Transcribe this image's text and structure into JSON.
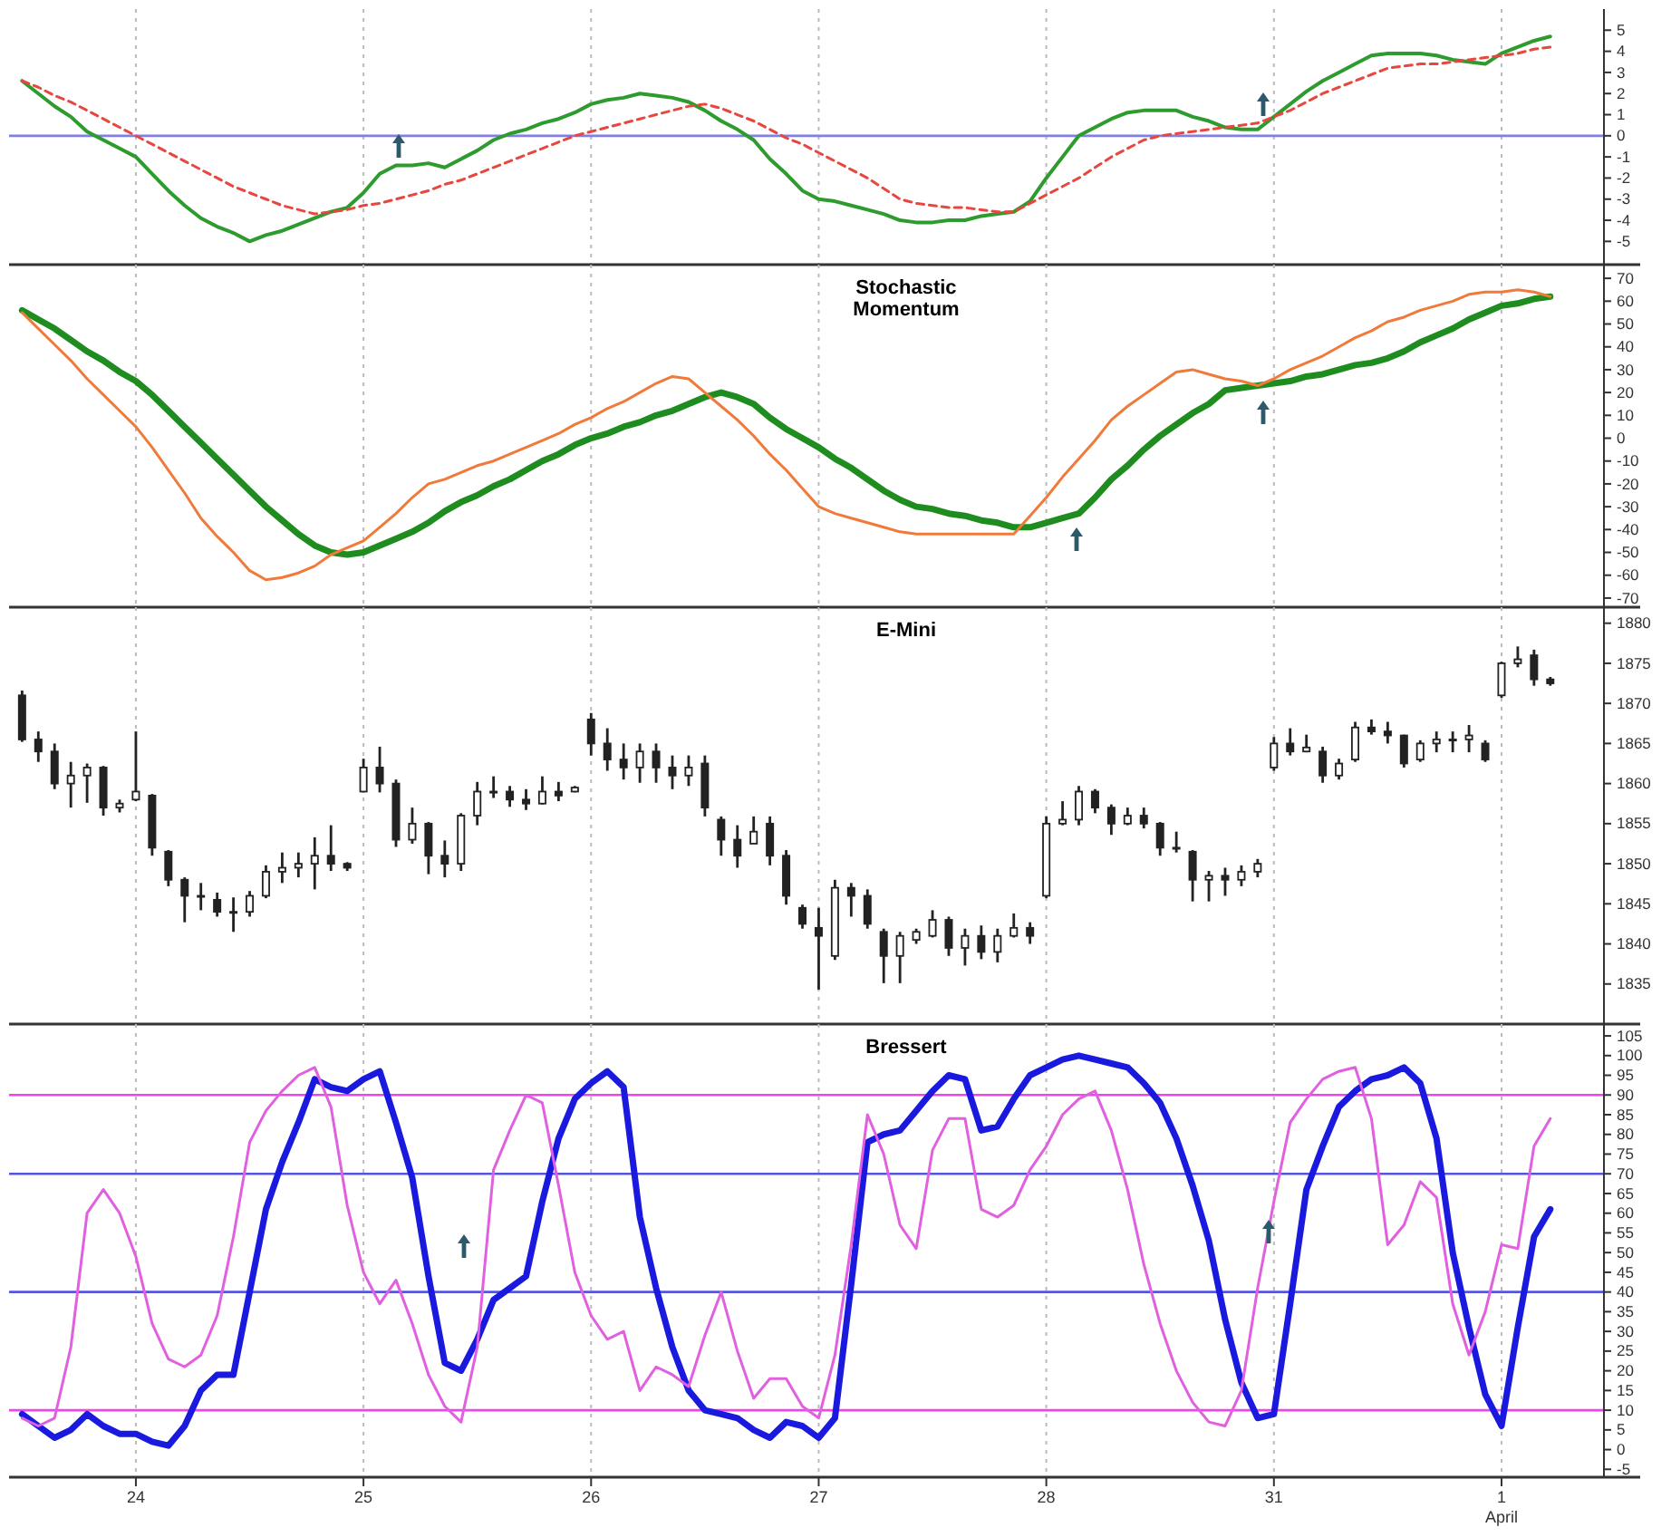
{
  "chart_data": [
    {
      "type": "line",
      "categories": [
        null,
        null,
        null,
        null,
        null,
        null,
        null,
        "24",
        null,
        null,
        null,
        null,
        null,
        null,
        null,
        null,
        null,
        null,
        null,
        null,
        null,
        "25",
        null,
        null,
        null,
        null,
        null,
        null,
        null,
        null,
        null,
        null,
        null,
        null,
        null,
        "26",
        null,
        null,
        null,
        null,
        null,
        null,
        null,
        null,
        null,
        null,
        null,
        null,
        null,
        "27",
        null,
        null,
        null,
        null,
        null,
        null,
        null,
        null,
        null,
        null,
        null,
        null,
        null,
        "28",
        null,
        null,
        null,
        null,
        null,
        null,
        null,
        null,
        null,
        null,
        null,
        null,
        null,
        "31",
        null,
        null,
        null,
        null,
        null,
        null,
        null,
        null,
        null,
        null,
        null,
        null,
        null,
        "1 April",
        null,
        null,
        null
      ],
      "ylim": [
        -6.1,
        6.0
      ],
      "yticks": [
        -5,
        -4,
        -3,
        -2,
        -1,
        0,
        1,
        2,
        3,
        4,
        5
      ],
      "grid": "x",
      "tick_labels": "y",
      "ref_lines": [
        {
          "axis": "y",
          "value": 0,
          "color": "#7f7fe6"
        }
      ],
      "series": [
        {
          "color": "#2e9b2e",
          "values": [
            2.6,
            2.0,
            1.4,
            0.9,
            0.2,
            -0.2,
            -0.6,
            -1.0,
            -1.8,
            -2.6,
            -3.3,
            -3.9,
            -4.3,
            -4.6,
            -5.0,
            -4.7,
            -4.5,
            -4.2,
            -3.9,
            -3.6,
            -3.4,
            -2.7,
            -1.8,
            -1.4,
            -1.4,
            -1.3,
            -1.5,
            -1.1,
            -0.7,
            -0.2,
            0.1,
            0.3,
            0.6,
            0.8,
            1.1,
            1.5,
            1.7,
            1.8,
            2.0,
            1.9,
            1.8,
            1.6,
            1.2,
            0.7,
            0.3,
            -0.2,
            -1.1,
            -1.8,
            -2.6,
            -3.0,
            -3.1,
            -3.3,
            -3.5,
            -3.7,
            -4.0,
            -4.1,
            -4.1,
            -4.0,
            -4.0,
            -3.8,
            -3.7,
            -3.6,
            -3.1,
            -2.0,
            -1.0,
            0,
            0.4,
            0.8,
            1.1,
            1.2,
            1.2,
            1.2,
            0.9,
            0.7,
            0.4,
            0.3,
            0.3,
            0.9,
            1.5,
            2.1,
            2.6,
            3.0,
            3.4,
            3.8,
            3.9,
            3.9,
            3.9,
            3.8,
            3.6,
            3.5,
            3.4,
            3.9,
            4.2,
            4.5,
            4.7
          ]
        },
        {
          "color": "#e8473f",
          "line_style": "dashed",
          "values": [
            2.6,
            2.3,
            1.9,
            1.6,
            1.2,
            0.8,
            0.4,
            0,
            -0.4,
            -0.8,
            -1.2,
            -1.6,
            -2.0,
            -2.4,
            -2.7,
            -3.0,
            -3.3,
            -3.5,
            -3.7,
            -3.6,
            -3.5,
            -3.3,
            -3.2,
            -3.0,
            -2.8,
            -2.6,
            -2.3,
            -2.1,
            -1.8,
            -1.5,
            -1.2,
            -0.9,
            -0.6,
            -0.3,
            0,
            0.2,
            0.4,
            0.6,
            0.8,
            1.0,
            1.2,
            1.4,
            1.5,
            1.3,
            1.0,
            0.7,
            0.3,
            -0.1,
            -0.4,
            -0.8,
            -1.2,
            -1.6,
            -2.0,
            -2.5,
            -3.0,
            -3.2,
            -3.3,
            -3.4,
            -3.4,
            -3.5,
            -3.6,
            -3.6,
            -3.2,
            -2.8,
            -2.4,
            -2.0,
            -1.5,
            -1.0,
            -0.6,
            -0.2,
            0,
            0.1,
            0.2,
            0.3,
            0.4,
            0.5,
            0.6,
            0.9,
            1.2,
            1.6,
            2.0,
            2.3,
            2.6,
            2.9,
            3.2,
            3.3,
            3.4,
            3.4,
            3.5,
            3.6,
            3.7,
            3.8,
            3.9,
            4.1,
            4.2
          ]
        }
      ]
    },
    {
      "type": "line",
      "title": "Stochastic Momentum",
      "categories": [
        null,
        null,
        null,
        null,
        null,
        null,
        null,
        "24",
        null,
        null,
        null,
        null,
        null,
        null,
        null,
        null,
        null,
        null,
        null,
        null,
        null,
        "25",
        null,
        null,
        null,
        null,
        null,
        null,
        null,
        null,
        null,
        null,
        null,
        null,
        null,
        "26",
        null,
        null,
        null,
        null,
        null,
        null,
        null,
        null,
        null,
        null,
        null,
        null,
        null,
        "27",
        null,
        null,
        null,
        null,
        null,
        null,
        null,
        null,
        null,
        null,
        null,
        null,
        null,
        "28",
        null,
        null,
        null,
        null,
        null,
        null,
        null,
        null,
        null,
        null,
        null,
        null,
        null,
        "31",
        null,
        null,
        null,
        null,
        null,
        null,
        null,
        null,
        null,
        null,
        null,
        null,
        null,
        "1 April",
        null,
        null,
        null
      ],
      "ylim": [
        -74,
        76
      ],
      "yticks": [
        -70,
        -60,
        -50,
        -40,
        -30,
        -20,
        -10,
        0,
        10,
        20,
        30,
        40,
        50,
        60,
        70
      ],
      "grid": "x",
      "tick_labels": "y",
      "series": [
        {
          "color": "#1e8c1e",
          "values": [
            56,
            52,
            48,
            43,
            38,
            34,
            29,
            25,
            19,
            12,
            5,
            -2,
            -9,
            -16,
            -23,
            -30,
            -36,
            -42,
            -47,
            -50,
            -51,
            -50,
            -47,
            -44,
            -41,
            -37,
            -32,
            -28,
            -25,
            -21,
            -18,
            -14,
            -10,
            -7,
            -3,
            0,
            2,
            5,
            7,
            10,
            12,
            15,
            18,
            20,
            18,
            15,
            9,
            4,
            0,
            -4,
            -9,
            -13,
            -18,
            -23,
            -27,
            -30,
            -31,
            -33,
            -34,
            -36,
            -37,
            -39,
            -39,
            -37,
            -35,
            -33,
            -26,
            -18,
            -12,
            -5,
            1,
            6,
            11,
            15,
            21,
            22,
            23,
            24,
            25,
            27,
            28,
            30,
            32,
            33,
            35,
            38,
            42,
            45,
            48,
            52,
            55,
            58,
            59,
            61,
            62
          ]
        },
        {
          "color": "#f07a3a",
          "values": [
            55,
            48,
            41,
            34,
            26,
            19,
            12,
            5,
            -4,
            -14,
            -24,
            -35,
            -43,
            -50,
            -58,
            -62,
            -61,
            -59,
            -56,
            -51,
            -48,
            -45,
            -39,
            -33,
            -26,
            -20,
            -18,
            -15,
            -12,
            -10,
            -7,
            -4,
            -1,
            2,
            6,
            9,
            13,
            16,
            20,
            24,
            27,
            26,
            20,
            14,
            8,
            1,
            -7,
            -14,
            -22,
            -30,
            -33,
            -35,
            -37,
            -39,
            -41,
            -42,
            -42,
            -42,
            -42,
            -42,
            -42,
            -42,
            -34,
            -26,
            -17,
            -9,
            -1,
            8,
            14,
            19,
            24,
            29,
            30,
            28,
            26,
            25,
            23,
            26,
            30,
            33,
            36,
            40,
            44,
            47,
            51,
            53,
            56,
            58,
            60,
            63,
            64,
            64,
            65,
            64,
            62
          ]
        }
      ]
    },
    {
      "type": "candlestick",
      "title": "E-Mini",
      "categories": [
        null,
        null,
        null,
        null,
        null,
        null,
        null,
        "24",
        null,
        null,
        null,
        null,
        null,
        null,
        null,
        null,
        null,
        null,
        null,
        null,
        null,
        "25",
        null,
        null,
        null,
        null,
        null,
        null,
        null,
        null,
        null,
        null,
        null,
        null,
        null,
        "26",
        null,
        null,
        null,
        null,
        null,
        null,
        null,
        null,
        null,
        null,
        null,
        null,
        null,
        "27",
        null,
        null,
        null,
        null,
        null,
        null,
        null,
        null,
        null,
        null,
        null,
        null,
        null,
        "28",
        null,
        null,
        null,
        null,
        null,
        null,
        null,
        null,
        null,
        null,
        null,
        null,
        null,
        "31",
        null,
        null,
        null,
        null,
        null,
        null,
        null,
        null,
        null,
        null,
        null,
        null,
        null,
        "1 April",
        null,
        null,
        null
      ],
      "ylim": [
        1830,
        1882
      ],
      "yticks": [
        1835,
        1840,
        1845,
        1850,
        1855,
        1860,
        1865,
        1870,
        1875,
        1880
      ],
      "grid": "x",
      "tick_labels": "y",
      "ohlc": [
        [
          1871,
          1871.6,
          1865.2,
          1865.5
        ],
        [
          1865.5,
          1866.5,
          1862.7,
          1864
        ],
        [
          1864,
          1865,
          1859.3,
          1860
        ],
        [
          1860,
          1862.7,
          1857,
          1861
        ],
        [
          1861,
          1862.5,
          1857.6,
          1862
        ],
        [
          1862,
          1862.2,
          1856,
          1857
        ],
        [
          1857,
          1858,
          1856.4,
          1857.5
        ],
        [
          1858,
          1866.5,
          1857.8,
          1859
        ],
        [
          1858.5,
          1858.7,
          1851,
          1852
        ],
        [
          1851.5,
          1851.7,
          1847.2,
          1848
        ],
        [
          1848,
          1848.3,
          1842.7,
          1846
        ],
        [
          1846,
          1847.6,
          1844.2,
          1846
        ],
        [
          1845.5,
          1846.4,
          1843.4,
          1844
        ],
        [
          1844,
          1845.8,
          1841.5,
          1844
        ],
        [
          1844,
          1846.6,
          1843.4,
          1846
        ],
        [
          1846,
          1849.8,
          1845.7,
          1849
        ],
        [
          1849,
          1851.4,
          1847.6,
          1849.5
        ],
        [
          1849.5,
          1851.4,
          1848.3,
          1850
        ],
        [
          1850,
          1853.3,
          1846.8,
          1851
        ],
        [
          1851,
          1854.8,
          1849.1,
          1850
        ],
        [
          1850,
          1850.2,
          1849.1,
          1849.5
        ],
        [
          1859,
          1863.1,
          1858.9,
          1862
        ],
        [
          1862,
          1864.6,
          1858.9,
          1860
        ],
        [
          1860,
          1860.5,
          1852.1,
          1853
        ],
        [
          1853,
          1857,
          1852.5,
          1855
        ],
        [
          1855,
          1855.2,
          1848.7,
          1851
        ],
        [
          1851,
          1852.9,
          1848.3,
          1850
        ],
        [
          1850,
          1856.3,
          1849.1,
          1856
        ],
        [
          1856,
          1860.2,
          1854.8,
          1859
        ],
        [
          1859,
          1860.9,
          1858.2,
          1859
        ],
        [
          1859,
          1859.7,
          1857.1,
          1858
        ],
        [
          1858,
          1859.3,
          1856.7,
          1857.5
        ],
        [
          1857.5,
          1860.9,
          1857.4,
          1859
        ],
        [
          1859,
          1860.2,
          1857.8,
          1858.5
        ],
        [
          1859,
          1859.7,
          1858.9,
          1859.5
        ],
        [
          1868,
          1868.8,
          1863.5,
          1865
        ],
        [
          1865,
          1866.9,
          1861.6,
          1863
        ],
        [
          1863,
          1865,
          1860.5,
          1862
        ],
        [
          1862,
          1865,
          1860.1,
          1864
        ],
        [
          1864,
          1865,
          1860.1,
          1862
        ],
        [
          1862,
          1863.5,
          1859.3,
          1861
        ],
        [
          1861,
          1863.5,
          1859.7,
          1862
        ],
        [
          1862.5,
          1863.5,
          1855.9,
          1857
        ],
        [
          1855.5,
          1855.9,
          1851,
          1853
        ],
        [
          1853,
          1854.8,
          1849.5,
          1851
        ],
        [
          1852.5,
          1855.9,
          1852.5,
          1854
        ],
        [
          1855,
          1855.9,
          1849.8,
          1851
        ],
        [
          1851,
          1851.7,
          1844.9,
          1846
        ],
        [
          1844.5,
          1844.9,
          1841.9,
          1842.5
        ],
        [
          1842,
          1844.5,
          1834.3,
          1841
        ],
        [
          1838.5,
          1848,
          1838,
          1847
        ],
        [
          1847,
          1847.6,
          1843.4,
          1846
        ],
        [
          1846,
          1846.8,
          1841.9,
          1842.5
        ],
        [
          1841.5,
          1841.9,
          1835.1,
          1838.5
        ],
        [
          1838.5,
          1841.5,
          1835.1,
          1841
        ],
        [
          1840.5,
          1841.9,
          1840,
          1841.5
        ],
        [
          1841,
          1844.2,
          1840.8,
          1843
        ],
        [
          1843,
          1843.4,
          1838.5,
          1839.5
        ],
        [
          1839.5,
          1841.9,
          1837.3,
          1841
        ],
        [
          1841,
          1842.3,
          1838.1,
          1839
        ],
        [
          1839,
          1841.9,
          1837.7,
          1841
        ],
        [
          1841,
          1843.8,
          1840.8,
          1842
        ],
        [
          1842,
          1842.7,
          1840,
          1841
        ],
        [
          1846,
          1855.9,
          1845.7,
          1855
        ],
        [
          1855,
          1857.8,
          1854.8,
          1855.5
        ],
        [
          1855.5,
          1859.7,
          1854.8,
          1859
        ],
        [
          1859,
          1859.3,
          1856.3,
          1857
        ],
        [
          1857,
          1857.4,
          1853.6,
          1855
        ],
        [
          1855,
          1857,
          1854.8,
          1856
        ],
        [
          1856,
          1857,
          1854.4,
          1855
        ],
        [
          1855,
          1855.2,
          1851,
          1852
        ],
        [
          1852,
          1854,
          1851.4,
          1852
        ],
        [
          1851.5,
          1851.7,
          1845.3,
          1848
        ],
        [
          1848,
          1849.1,
          1845.3,
          1848.5
        ],
        [
          1848.5,
          1849.5,
          1846,
          1848
        ],
        [
          1848,
          1849.8,
          1847.2,
          1849
        ],
        [
          1849,
          1850.6,
          1848.3,
          1850
        ],
        [
          1862,
          1865.8,
          1861.6,
          1865
        ],
        [
          1865,
          1866.9,
          1863.5,
          1864
        ],
        [
          1864,
          1866.1,
          1863.9,
          1864.5
        ],
        [
          1864,
          1864.6,
          1860.1,
          1861
        ],
        [
          1861,
          1863.1,
          1860.5,
          1862.5
        ],
        [
          1863,
          1867.7,
          1862.7,
          1867
        ],
        [
          1867,
          1868,
          1866.1,
          1866.5
        ],
        [
          1866.5,
          1867.7,
          1865,
          1866
        ],
        [
          1866,
          1866.1,
          1862,
          1862.5
        ],
        [
          1863,
          1865.4,
          1862.7,
          1865
        ],
        [
          1865,
          1866.5,
          1863.9,
          1865.5
        ],
        [
          1865.5,
          1866.5,
          1863.9,
          1865.5
        ],
        [
          1865.5,
          1867.3,
          1863.9,
          1866
        ],
        [
          1865,
          1865.4,
          1862.7,
          1863
        ],
        [
          1871,
          1875.2,
          1870.7,
          1875
        ],
        [
          1875,
          1877.1,
          1874.5,
          1875.5
        ],
        [
          1876,
          1876.7,
          1872.2,
          1873
        ],
        [
          1873,
          1873.3,
          1872.2,
          1872.5
        ]
      ]
    },
    {
      "type": "line",
      "title": "Bressert",
      "categories": [
        null,
        null,
        null,
        null,
        null,
        null,
        null,
        "24",
        null,
        null,
        null,
        null,
        null,
        null,
        null,
        null,
        null,
        null,
        null,
        null,
        null,
        "25",
        null,
        null,
        null,
        null,
        null,
        null,
        null,
        null,
        null,
        null,
        null,
        null,
        null,
        "26",
        null,
        null,
        null,
        null,
        null,
        null,
        null,
        null,
        null,
        null,
        null,
        null,
        null,
        "27",
        null,
        null,
        null,
        null,
        null,
        null,
        null,
        null,
        null,
        null,
        null,
        null,
        null,
        "28",
        null,
        null,
        null,
        null,
        null,
        null,
        null,
        null,
        null,
        null,
        null,
        null,
        null,
        "31",
        null,
        null,
        null,
        null,
        null,
        null,
        null,
        null,
        null,
        null,
        null,
        null,
        null,
        "1 April",
        null,
        null,
        null
      ],
      "ylim": [
        -7,
        108
      ],
      "yticks": [
        -5,
        0,
        5,
        10,
        15,
        20,
        25,
        30,
        35,
        40,
        45,
        50,
        55,
        60,
        65,
        70,
        75,
        80,
        85,
        90,
        95,
        100,
        105
      ],
      "grid": "x",
      "ref_lines": [
        {
          "axis": "y",
          "value": 90,
          "color": "#ee44ee"
        },
        {
          "axis": "y",
          "value": 70,
          "color": "#5555dd"
        },
        {
          "axis": "y",
          "value": 40,
          "color": "#5555dd"
        },
        {
          "axis": "y",
          "value": 10,
          "color": "#ee44ee"
        }
      ],
      "series": [
        {
          "color": "#1a1adf",
          "values": [
            9,
            6,
            3,
            5,
            9,
            6,
            4,
            4,
            2,
            1,
            6,
            15,
            19,
            19,
            40,
            61,
            73,
            83,
            94,
            92,
            91,
            94,
            96,
            83,
            69,
            44,
            22,
            20,
            28,
            38,
            41,
            44,
            63,
            79,
            89,
            93,
            96,
            92,
            59,
            41,
            26,
            15,
            10,
            9,
            8,
            5,
            3,
            7,
            6,
            3,
            8,
            42,
            78,
            80,
            81,
            86,
            91,
            95,
            94,
            81,
            82,
            89,
            95,
            97,
            99,
            100,
            99,
            98,
            97,
            93,
            88,
            79,
            67,
            53,
            33,
            17,
            8,
            9,
            37,
            66,
            77,
            87,
            91,
            94,
            95,
            97,
            93,
            79,
            50,
            31,
            14,
            6,
            31,
            54,
            61
          ]
        },
        {
          "color": "#e060e0",
          "values": [
            8,
            6,
            8,
            26,
            60,
            66,
            60,
            49,
            32,
            23,
            21,
            24,
            34,
            54,
            78,
            86,
            91,
            95,
            97,
            87,
            62,
            45,
            37,
            43,
            32,
            19,
            11,
            7,
            26,
            71,
            81,
            90,
            88,
            67,
            45,
            34,
            28,
            30,
            15,
            21,
            19,
            16,
            29,
            40,
            25,
            13,
            18,
            18,
            11,
            8,
            24,
            52,
            85,
            75,
            57,
            51,
            76,
            84,
            84,
            61,
            59,
            62,
            71,
            77,
            85,
            89,
            91,
            81,
            66,
            47,
            32,
            20,
            12,
            7,
            6,
            15,
            41,
            63,
            83,
            89,
            94,
            96,
            97,
            84,
            52,
            57,
            68,
            64,
            37,
            24,
            35,
            52,
            51,
            77,
            84
          ]
        }
      ]
    }
  ]
}
